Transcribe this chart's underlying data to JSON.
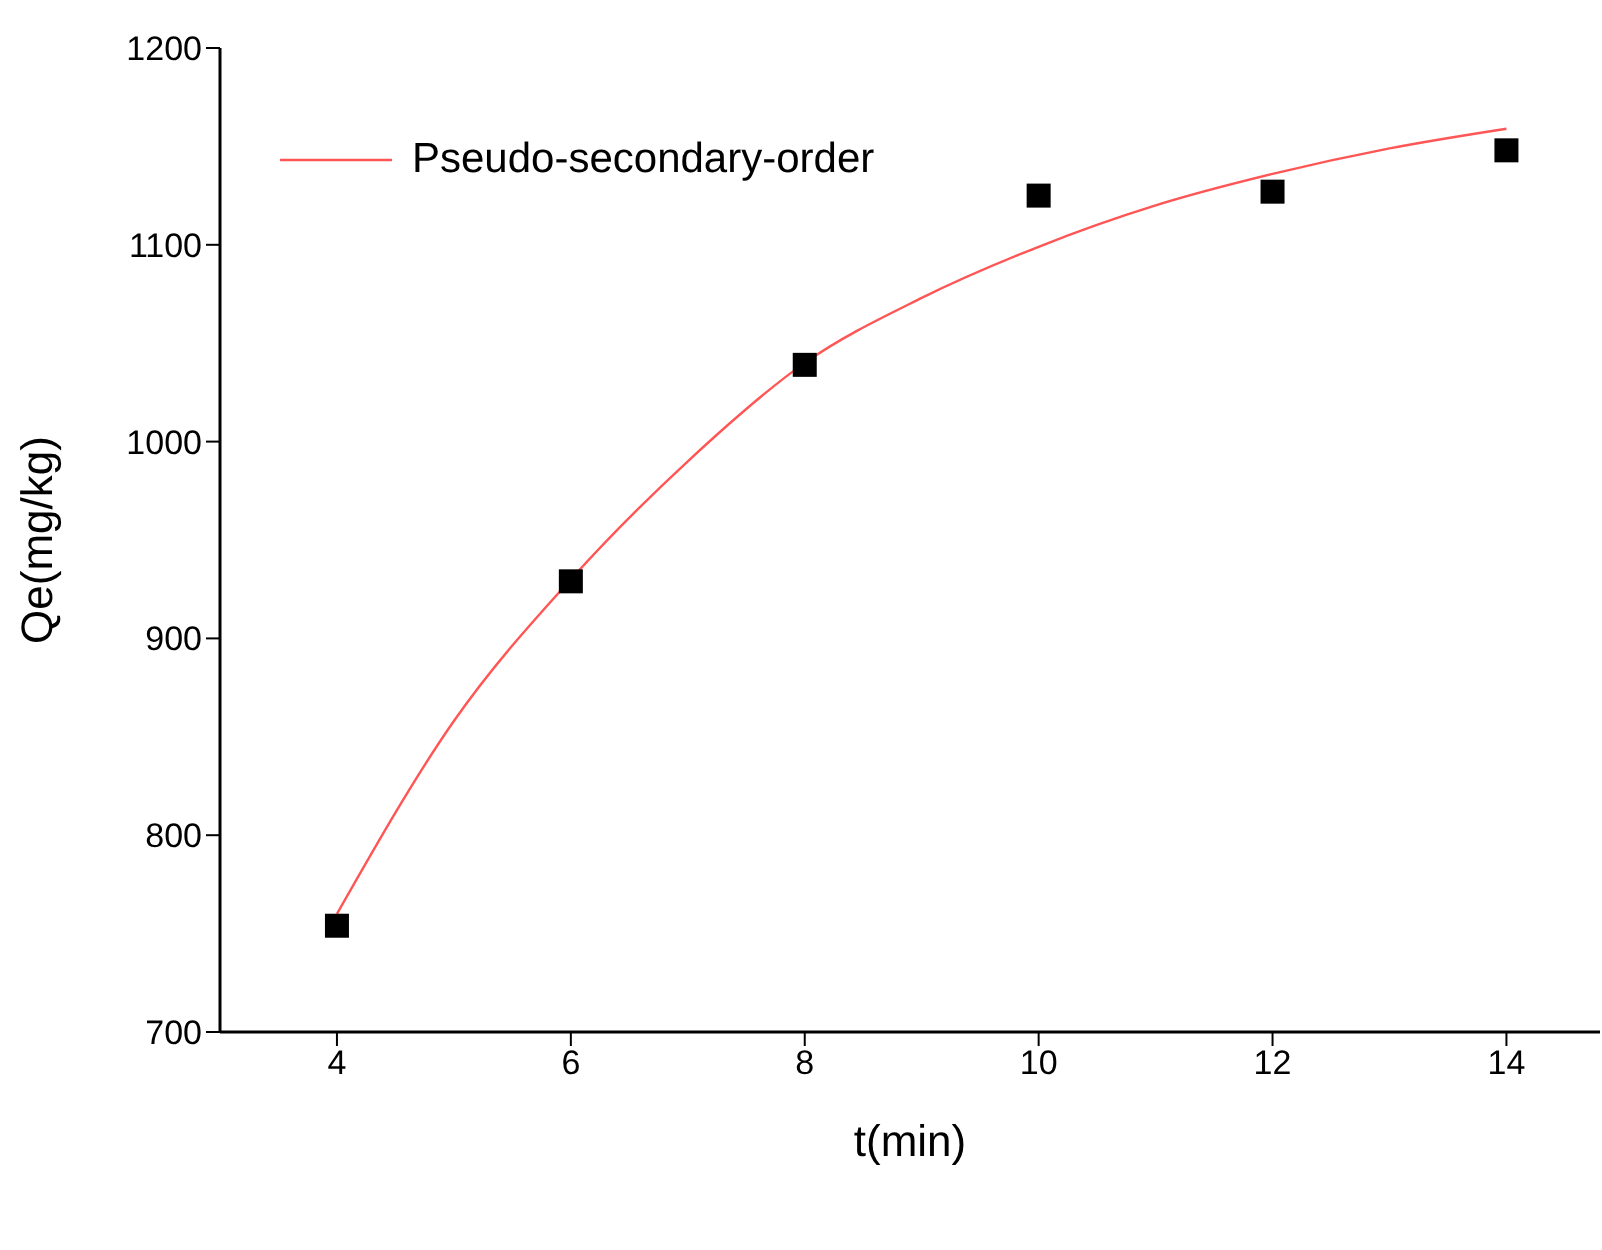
{
  "chart_data": {
    "type": "scatter",
    "xlabel": "t(min)",
    "ylabel": "Qe(mg/kg)",
    "xlim": [
      3,
      14.8
    ],
    "xticks": [
      4,
      6,
      8,
      10,
      12,
      14
    ],
    "ylim": [
      700,
      1200
    ],
    "yticks": [
      700,
      800,
      900,
      1000,
      1100,
      1200
    ],
    "legend": "top left",
    "grid": false,
    "series": [
      {
        "marker": "square",
        "color": "#000000",
        "x": [
          4,
          6,
          8,
          10,
          12,
          14
        ],
        "values": [
          754,
          929,
          1039,
          1125,
          1127,
          1148
        ]
      },
      {
        "type": "line",
        "marker": "none",
        "line_style": "solid",
        "name": "Pseudo-secondary-order",
        "color": "#ff5555",
        "x": [
          4,
          5,
          6,
          7,
          8,
          9,
          10,
          11,
          12,
          13,
          14
        ],
        "values": [
          760,
          858,
          930,
          990,
          1040,
          1073,
          1099,
          1120,
          1136,
          1149,
          1159
        ]
      }
    ]
  }
}
